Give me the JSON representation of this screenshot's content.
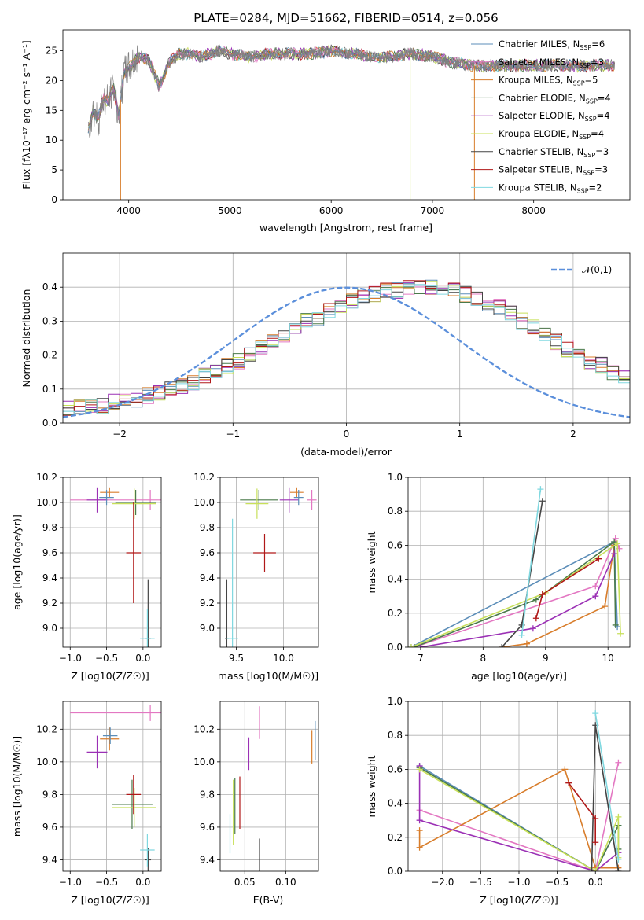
{
  "chart_data": [
    {
      "type": "line",
      "title": "PLATE=0284, MJD=51662, FIBERID=0514, z=0.056",
      "xlabel": "wavelength [Angstrom, rest frame]",
      "ylabel": "Flux [fλ10⁻¹⁷ erg cm⁻² s⁻¹ A⁻¹]",
      "xlim": [
        3350,
        8950
      ],
      "ylim": [
        0,
        28.5
      ],
      "x_ticks": [
        4000,
        5000,
        6000,
        7000,
        8000
      ],
      "y_ticks": [
        0,
        5,
        10,
        15,
        20,
        25
      ],
      "legend_position": "upper right",
      "data_spectrum": {
        "color": "#808080",
        "x": [
          3600,
          3650,
          3700,
          3750,
          3800,
          3850,
          3900,
          3950,
          4000,
          4100,
          4200,
          4300,
          4400,
          4500,
          4600,
          4700,
          4800,
          4900,
          5000,
          5200,
          5400,
          5600,
          5800,
          6000,
          6200,
          6400,
          6600,
          6800,
          7000,
          7200,
          7400,
          7600,
          7800,
          8000,
          8200,
          8400,
          8600,
          8800
        ],
        "y": [
          12,
          15,
          13.5,
          17,
          16.5,
          19,
          14,
          21,
          22,
          24,
          23.5,
          19,
          23,
          24.5,
          24.5,
          24,
          24.5,
          25,
          24.5,
          24,
          24.5,
          24.5,
          24.5,
          25,
          24.5,
          24,
          24,
          24.5,
          24,
          23,
          22.5,
          22.5,
          22.5,
          22.5,
          22.5,
          22.5,
          22.5,
          22.5
        ]
      },
      "series": [
        {
          "name": "Chabrier MILES, N_SSP=6",
          "color": "#5b8db8"
        },
        {
          "name": "Salpeter MILES, N_SSP=3",
          "color": "#e377c2"
        },
        {
          "name": "Kroupa MILES, N_SSP=5",
          "color": "#d87d2b"
        },
        {
          "name": "Chabrier ELODIE, N_SSP=4",
          "color": "#4a7a4a"
        },
        {
          "name": "Salpeter ELODIE, N_SSP=4",
          "color": "#9b30b5"
        },
        {
          "name": "Kroupa ELODIE, N_SSP=4",
          "color": "#c8e05a"
        },
        {
          "name": "Chabrier STELIB, N_SSP=3",
          "color": "#444444"
        },
        {
          "name": "Salpeter STELIB, N_SSP=3",
          "color": "#b01818"
        },
        {
          "name": "Kroupa STELIB, N_SSP=2",
          "color": "#80d8e0"
        }
      ]
    },
    {
      "type": "histogram",
      "xlabel": "(data-model)/error",
      "ylabel": "Normed distribution",
      "xlim": [
        -2.5,
        2.5
      ],
      "ylim": [
        0,
        0.5
      ],
      "x_ticks": [
        -2,
        -1,
        0,
        1,
        2
      ],
      "y_ticks": [
        0.0,
        0.1,
        0.2,
        0.3,
        0.4
      ],
      "reference_curve": {
        "name": "𝒩(0,1)",
        "color": "#5b8fdb",
        "style": "dashed"
      },
      "legend_position": "upper right",
      "bin_width": 0.1,
      "bin_start": -2.5,
      "approx_values": [
        0.04,
        0.045,
        0.05,
        0.05,
        0.06,
        0.065,
        0.07,
        0.08,
        0.09,
        0.1,
        0.11,
        0.12,
        0.14,
        0.15,
        0.17,
        0.18,
        0.2,
        0.22,
        0.24,
        0.26,
        0.28,
        0.3,
        0.31,
        0.33,
        0.35,
        0.36,
        0.37,
        0.38,
        0.39,
        0.39,
        0.4,
        0.4,
        0.4,
        0.39,
        0.39,
        0.38,
        0.37,
        0.35,
        0.34,
        0.32,
        0.3,
        0.28,
        0.26,
        0.24,
        0.22,
        0.2,
        0.18,
        0.17,
        0.15,
        0.14
      ]
    },
    {
      "type": "scatter",
      "xlabel": "Z [log10(Z/Z☉)]",
      "ylabel": "age  [log10(age/yr)]",
      "xlim": [
        -1.1,
        0.25
      ],
      "ylim": [
        8.85,
        10.2
      ],
      "x_ticks": [
        -1.0,
        -0.5,
        0.0
      ],
      "y_ticks": [
        9.0,
        9.2,
        9.4,
        9.6,
        9.8,
        10.0,
        10.2
      ],
      "points": [
        {
          "color": "#e377c2",
          "x": 0.1,
          "y": 10.02,
          "xerr": 1.1,
          "yerr": 0.08
        },
        {
          "color": "#d87d2b",
          "x": -0.46,
          "y": 10.08,
          "xerr": 0.13,
          "yerr": 0.04
        },
        {
          "color": "#9b30b5",
          "x": -0.63,
          "y": 10.02,
          "xerr": 0.14,
          "yerr": 0.1
        },
        {
          "color": "#5b8db8",
          "x": -0.5,
          "y": 10.04,
          "xerr": 0.1,
          "yerr": 0.06
        },
        {
          "color": "#4a7a4a",
          "x": -0.1,
          "y": 10.0,
          "xerr": 0.28,
          "yerr": 0.1
        },
        {
          "color": "#c8e05a",
          "x": -0.12,
          "y": 9.99,
          "xerr": 0.3,
          "yerr": 0.12
        },
        {
          "color": "#b01818",
          "x": -0.13,
          "y": 9.6,
          "xerr": 0.1,
          "yerr": 0.4
        },
        {
          "color": "#444444",
          "x": 0.07,
          "y": 8.92,
          "xerr": 0.04,
          "yerr": 0.47
        },
        {
          "color": "#80d8e0",
          "x": 0.06,
          "y": 8.92,
          "xerr": 0.1,
          "yerr": 0.23
        }
      ]
    },
    {
      "type": "scatter",
      "xlabel": "mass [log10(M/M☉)]",
      "xlim": [
        9.33,
        10.37
      ],
      "ylim": [
        8.85,
        10.2
      ],
      "x_ticks": [
        9.5,
        10.0
      ],
      "y_ticks": [
        9.0,
        9.2,
        9.4,
        9.6,
        9.8,
        10.0,
        10.2
      ],
      "points": [
        {
          "color": "#e377c2",
          "x": 10.3,
          "y": 10.02,
          "xerr": 0.05,
          "yerr": 0.08
        },
        {
          "color": "#d87d2b",
          "x": 10.14,
          "y": 10.08,
          "xerr": 0.07,
          "yerr": 0.04
        },
        {
          "color": "#9b30b5",
          "x": 10.06,
          "y": 10.02,
          "xerr": 0.1,
          "yerr": 0.1
        },
        {
          "color": "#5b8db8",
          "x": 10.16,
          "y": 10.04,
          "xerr": 0.05,
          "yerr": 0.06
        },
        {
          "color": "#4a7a4a",
          "x": 9.74,
          "y": 10.02,
          "xerr": 0.2,
          "yerr": 0.08
        },
        {
          "color": "#c8e05a",
          "x": 9.72,
          "y": 9.99,
          "xerr": 0.12,
          "yerr": 0.12
        },
        {
          "color": "#b01818",
          "x": 9.8,
          "y": 9.6,
          "xerr": 0.12,
          "yerr": 0.15
        },
        {
          "color": "#444444",
          "x": 9.4,
          "y": 8.92,
          "xerr": 0.02,
          "yerr": 0.47
        },
        {
          "color": "#80d8e0",
          "x": 9.46,
          "y": 8.92,
          "xerr": 0.06,
          "yerr": 0.95
        }
      ]
    },
    {
      "type": "line",
      "xlabel": "age  [log10(age/yr)]",
      "ylabel": "mass weight",
      "xlim": [
        6.8,
        10.35
      ],
      "ylim": [
        0,
        1.0
      ],
      "x_ticks": [
        7,
        8,
        9,
        10
      ],
      "y_ticks": [
        0.0,
        0.2,
        0.4,
        0.6,
        0.8,
        1.0
      ],
      "series": [
        {
          "color": "#5b8db8",
          "x": [
            6.85,
            10.1,
            10.15
          ],
          "y": [
            0.0,
            0.62,
            0.12
          ]
        },
        {
          "color": "#e377c2",
          "x": [
            6.9,
            9.8,
            10.12,
            10.18
          ],
          "y": [
            0.0,
            0.36,
            0.64,
            0.58
          ]
        },
        {
          "color": "#d87d2b",
          "x": [
            8.3,
            8.7,
            9.95,
            10.1
          ],
          "y": [
            0.0,
            0.02,
            0.24,
            0.6
          ]
        },
        {
          "color": "#4a7a4a",
          "x": [
            6.9,
            8.85,
            10.1,
            10.12
          ],
          "y": [
            0.0,
            0.28,
            0.62,
            0.13
          ]
        },
        {
          "color": "#9b30b5",
          "x": [
            7.0,
            8.8,
            9.8,
            10.1
          ],
          "y": [
            0.0,
            0.11,
            0.3,
            0.55
          ]
        },
        {
          "color": "#c8e05a",
          "x": [
            6.85,
            9.0,
            10.15,
            10.2
          ],
          "y": [
            0.0,
            0.32,
            0.61,
            0.08
          ]
        },
        {
          "color": "#444444",
          "x": [
            8.3,
            8.62,
            8.95
          ],
          "y": [
            0.0,
            0.13,
            0.86
          ]
        },
        {
          "color": "#b01818",
          "x": [
            8.85,
            8.95,
            9.85
          ],
          "y": [
            0.17,
            0.31,
            0.52
          ]
        },
        {
          "color": "#80d8e0",
          "x": [
            8.62,
            8.92
          ],
          "y": [
            0.07,
            0.93
          ]
        }
      ]
    },
    {
      "type": "scatter",
      "xlabel": "Z [log10(Z/Z☉)]",
      "ylabel": "mass [log10(M/M☉)]",
      "xlim": [
        -1.1,
        0.25
      ],
      "ylim": [
        9.33,
        10.37
      ],
      "x_ticks": [
        -1.0,
        -0.5,
        0.0
      ],
      "y_ticks": [
        9.4,
        9.6,
        9.8,
        10.0,
        10.2
      ],
      "points": [
        {
          "color": "#e377c2",
          "x": 0.1,
          "y": 10.3,
          "xerr": 1.1,
          "yerr": 0.05
        },
        {
          "color": "#d87d2b",
          "x": -0.46,
          "y": 10.14,
          "xerr": 0.13,
          "yerr": 0.07
        },
        {
          "color": "#9b30b5",
          "x": -0.63,
          "y": 10.06,
          "xerr": 0.14,
          "yerr": 0.1
        },
        {
          "color": "#5b8db8",
          "x": -0.45,
          "y": 10.16,
          "xerr": 0.1,
          "yerr": 0.05
        },
        {
          "color": "#4a7a4a",
          "x": -0.15,
          "y": 9.74,
          "xerr": 0.28,
          "yerr": 0.15
        },
        {
          "color": "#c8e05a",
          "x": -0.12,
          "y": 9.72,
          "xerr": 0.3,
          "yerr": 0.12
        },
        {
          "color": "#b01818",
          "x": -0.13,
          "y": 9.8,
          "xerr": 0.1,
          "yerr": 0.12
        },
        {
          "color": "#444444",
          "x": 0.07,
          "y": 9.4,
          "xerr": 0.04,
          "yerr": 0.07
        },
        {
          "color": "#80d8e0",
          "x": 0.06,
          "y": 9.46,
          "xerr": 0.1,
          "yerr": 0.1
        }
      ]
    },
    {
      "type": "scatter",
      "xlabel": "E(B-V)",
      "xlim": [
        0.02,
        0.14
      ],
      "ylim": [
        9.33,
        10.37
      ],
      "x_ticks": [
        0.05,
        0.1
      ],
      "y_ticks": [
        9.4,
        9.6,
        9.8,
        10.0,
        10.2
      ],
      "points": [
        {
          "color": "#e377c2",
          "x": 0.068,
          "y": 10.24,
          "yerr": 0.1
        },
        {
          "color": "#d87d2b",
          "x": 0.132,
          "y": 10.09,
          "yerr": 0.1
        },
        {
          "color": "#5b8db8",
          "x": 0.136,
          "y": 10.13,
          "yerr": 0.12
        },
        {
          "color": "#9b30b5",
          "x": 0.055,
          "y": 10.05,
          "yerr": 0.1
        },
        {
          "color": "#b01818",
          "x": 0.044,
          "y": 9.75,
          "yerr": 0.16
        },
        {
          "color": "#4a7a4a",
          "x": 0.038,
          "y": 9.73,
          "yerr": 0.17
        },
        {
          "color": "#c8e05a",
          "x": 0.036,
          "y": 9.69,
          "yerr": 0.2
        },
        {
          "color": "#80d8e0",
          "x": 0.032,
          "y": 9.56,
          "yerr": 0.12
        },
        {
          "color": "#444444",
          "x": 0.068,
          "y": 9.43,
          "yerr": 0.1
        }
      ]
    },
    {
      "type": "line",
      "xlabel": "Z [log10(Z/Z☉)]",
      "ylabel": "mass weight",
      "xlim": [
        -2.45,
        0.45
      ],
      "ylim": [
        0,
        1.0
      ],
      "x_ticks": [
        -2.0,
        -1.5,
        -1.0,
        -0.5,
        0.0
      ],
      "y_ticks": [
        0.0,
        0.2,
        0.4,
        0.6,
        0.8,
        1.0
      ],
      "series": [
        {
          "color": "#5b8db8",
          "x": [
            -2.3,
            0.0,
            0.3
          ],
          "y": [
            0.62,
            0.0,
            0.27
          ]
        },
        {
          "color": "#e377c2",
          "x": [
            -2.3,
            0.0,
            0.3
          ],
          "y": [
            0.36,
            0.0,
            0.64
          ]
        },
        {
          "color": "#d87d2b",
          "x": [
            -2.3,
            -2.3,
            -0.4,
            0.0,
            0.3
          ],
          "y": [
            0.24,
            0.14,
            0.6,
            0.02,
            0.02
          ]
        },
        {
          "color": "#4a7a4a",
          "x": [
            -2.3,
            0.0,
            0.3,
            0.3
          ],
          "y": [
            0.61,
            0.0,
            0.27,
            0.13
          ]
        },
        {
          "color": "#9b30b5",
          "x": [
            -2.3,
            -2.3,
            0.0,
            0.3
          ],
          "y": [
            0.62,
            0.3,
            0.0,
            0.11
          ]
        },
        {
          "color": "#c8e05a",
          "x": [
            -2.3,
            0.0,
            0.3,
            0.3
          ],
          "y": [
            0.6,
            0.0,
            0.32,
            0.08
          ]
        },
        {
          "color": "#444444",
          "x": [
            -0.05,
            0.0,
            0.3
          ],
          "y": [
            0.0,
            0.86,
            0.0
          ]
        },
        {
          "color": "#b01818",
          "x": [
            -0.35,
            0.0,
            0.0
          ],
          "y": [
            0.52,
            0.31,
            0.17
          ]
        },
        {
          "color": "#80d8e0",
          "x": [
            0.0,
            0.3
          ],
          "y": [
            0.93,
            0.07
          ]
        }
      ]
    }
  ],
  "legend_labels": [
    "Chabrier MILES, N",
    "Salpeter MILES, N",
    "Kroupa MILES, N",
    "Chabrier ELODIE, N",
    "Salpeter ELODIE, N",
    "Kroupa ELODIE, N",
    "Chabrier STELIB, N",
    "Salpeter STELIB, N",
    "Kroupa STELIB, N"
  ],
  "legend_subscript": "SSP",
  "legend_counts": [
    "=6",
    "=3",
    "=5",
    "=4",
    "=4",
    "=4",
    "=3",
    "=3",
    "=2"
  ]
}
